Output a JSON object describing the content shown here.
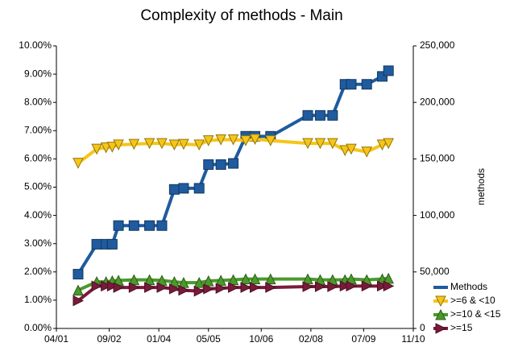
{
  "chart_data": {
    "type": "line",
    "title": "Complexity of methods - Main",
    "y2label": "methods",
    "x": [
      "11/01",
      "05/02",
      "08/02",
      "10/02",
      "12/02",
      "05/03",
      "10/03",
      "02/04",
      "06/04",
      "09/04",
      "02/05",
      "05/05",
      "09/05",
      "01/06",
      "05/06",
      "08/06",
      "01/07",
      "01/08",
      "05/08",
      "09/08",
      "01/09",
      "03/09",
      "08/09",
      "01/10",
      "03/10"
    ],
    "xlim": [
      "04/01",
      "11/10"
    ],
    "xticks": [
      "04/01",
      "09/02",
      "01/04",
      "05/05",
      "10/06",
      "02/08",
      "07/09",
      "11/10"
    ],
    "ylim": [
      0,
      10
    ],
    "yticks": [
      {
        "value": 0,
        "label": "0.00%"
      },
      {
        "value": 1,
        "label": "1.00%"
      },
      {
        "value": 2,
        "label": "2.00%"
      },
      {
        "value": 3,
        "label": "3.00%"
      },
      {
        "value": 4,
        "label": "4.00%"
      },
      {
        "value": 5,
        "label": "5.00%"
      },
      {
        "value": 6,
        "label": "6.00%"
      },
      {
        "value": 7,
        "label": "7.00%"
      },
      {
        "value": 8,
        "label": "8.00%"
      },
      {
        "value": 9,
        "label": "9.00%"
      },
      {
        "value": 10,
        "label": "10.00%"
      }
    ],
    "y2lim": [
      0,
      250000
    ],
    "y2ticks": [
      0,
      {
        "value": 50000,
        "label": "50,000"
      },
      {
        "value": 100000,
        "label": "100,000"
      },
      {
        "value": 150000,
        "label": "150,000"
      },
      {
        "value": 200000,
        "label": "200,000"
      },
      {
        "value": 250000,
        "label": "250,000"
      }
    ],
    "series": [
      {
        "name": "Methods",
        "color": "#1f5b9e",
        "marker": "square",
        "axis": "y2",
        "values": [
          48000,
          74500,
          74500,
          74500,
          91000,
          91000,
          91000,
          91000,
          123000,
          124000,
          124000,
          145000,
          145000,
          146000,
          170000,
          170000,
          170000,
          188500,
          188500,
          188500,
          216000,
          216000,
          216000,
          223000,
          228000
        ]
      },
      {
        "name": ">=6 & <10",
        "color": "#f5c518",
        "marker": "triangle-down",
        "values": [
          5.85,
          6.35,
          6.4,
          6.42,
          6.5,
          6.52,
          6.55,
          6.55,
          6.5,
          6.52,
          6.5,
          6.65,
          6.68,
          6.68,
          6.65,
          6.7,
          6.65,
          6.55,
          6.55,
          6.55,
          6.3,
          6.35,
          6.25,
          6.5,
          6.55
        ]
      },
      {
        "name": ">=10 & <15",
        "color": "#4a9a2a",
        "marker": "triangle-up",
        "values": [
          1.35,
          1.65,
          1.65,
          1.68,
          1.7,
          1.72,
          1.72,
          1.7,
          1.65,
          1.62,
          1.62,
          1.68,
          1.7,
          1.72,
          1.75,
          1.75,
          1.75,
          1.75,
          1.72,
          1.72,
          1.72,
          1.75,
          1.72,
          1.75,
          1.77
        ]
      },
      {
        "name": ">=15",
        "color": "#7a1a3a",
        "marker": "triangle-right",
        "values": [
          0.98,
          1.5,
          1.5,
          1.5,
          1.45,
          1.45,
          1.45,
          1.45,
          1.4,
          1.35,
          1.32,
          1.4,
          1.42,
          1.45,
          1.45,
          1.45,
          1.45,
          1.48,
          1.48,
          1.48,
          1.5,
          1.5,
          1.5,
          1.5,
          1.5
        ]
      }
    ]
  }
}
